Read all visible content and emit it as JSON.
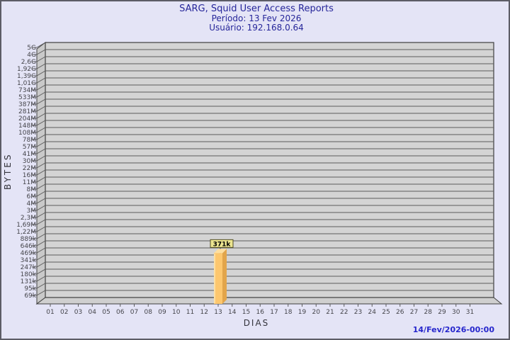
{
  "header": {
    "title": "SARG, Squid User Access Reports",
    "period": "Período: 13 Fev 2026",
    "user": "Usuário: 192.168.0.64"
  },
  "footer": {
    "generated": "14/Fev/2026-00:00"
  },
  "colors": {
    "background": "#e4e4f6",
    "border": "#5c5c66",
    "title_text": "#26269a",
    "footer_text": "#2626cc",
    "axis_title_text": "#33333b",
    "axis_tick_text": "#45454b",
    "panel_fill": "#d4d4d4",
    "panel_side_fill": "#c9c9c9",
    "panel_floor_fill": "#cfcfcf",
    "grid_line": "#5d5d5d",
    "panel_edge": "#3f3f3f",
    "bar_front": "#fdc76e",
    "bar_highlight": "#fee9b4",
    "bar_side": "#e2a54b",
    "bar_top": "#fedf9f",
    "bar_label_fill": "#ece590",
    "bar_label_border": "#514d22",
    "bar_label_text": "#000000"
  },
  "chart_data": {
    "type": "bar",
    "title": "SARG, Squid User Access Reports",
    "xlabel": "DIAS",
    "ylabel": "BYTES",
    "y_scale": "logarithmic",
    "legend_position": "none",
    "grid": "horizontal",
    "y_tick_labels": [
      "5G",
      "4G",
      "2,6G",
      "1,92G",
      "1,39G",
      "1,01G",
      "734M",
      "533M",
      "387M",
      "281M",
      "204M",
      "148M",
      "108M",
      "78M",
      "57M",
      "41M",
      "30M",
      "22M",
      "16M",
      "11M",
      "8M",
      "6M",
      "4M",
      "3M",
      "2,3M",
      "1,69M",
      "1,22M",
      "889k",
      "646k",
      "469k",
      "341k",
      "247k",
      "180k",
      "131k",
      "95k",
      "69k"
    ],
    "categories": [
      "01",
      "02",
      "03",
      "04",
      "05",
      "06",
      "07",
      "08",
      "09",
      "10",
      "11",
      "12",
      "13",
      "14",
      "15",
      "16",
      "17",
      "18",
      "19",
      "20",
      "21",
      "22",
      "23",
      "24",
      "25",
      "26",
      "27",
      "28",
      "29",
      "30",
      "31"
    ],
    "series": [
      {
        "name": "bytes-per-day",
        "points": [
          {
            "category": "13",
            "value": 371000,
            "label": "371k"
          }
        ]
      }
    ]
  }
}
